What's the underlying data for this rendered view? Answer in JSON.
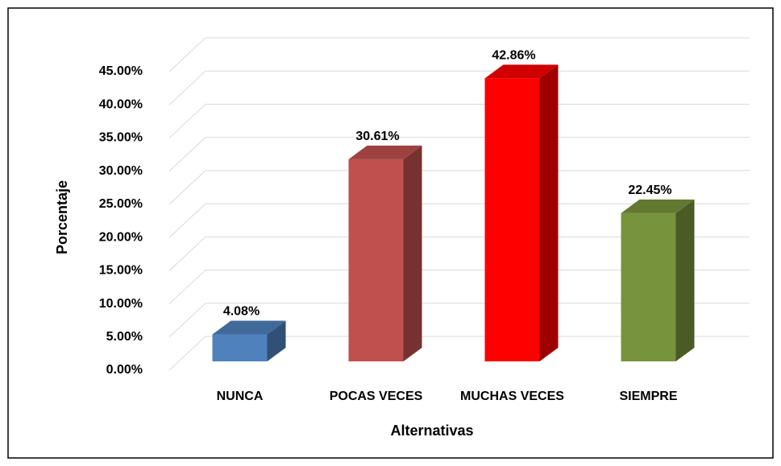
{
  "chart_data": {
    "type": "bar3d",
    "categories": [
      "NUNCA",
      "POCAS VECES",
      "MUCHAS VECES",
      "SIEMPRE"
    ],
    "values": [
      4.08,
      30.61,
      42.86,
      22.45
    ],
    "value_labels": [
      "4.08%",
      "30.61%",
      "42.86%",
      "22.45%"
    ],
    "colors": [
      "#4f81bd",
      "#c0504d",
      "#ff0000",
      "#77933c"
    ],
    "x_label": "Alternativas",
    "y_label": "Porcentaje",
    "ylim": [
      0,
      45
    ],
    "yticks": [
      {
        "value": 0,
        "label": "0.00%"
      },
      {
        "value": 5,
        "label": "5.00%"
      },
      {
        "value": 10,
        "label": "10.00%"
      },
      {
        "value": 15,
        "label": "15.00%"
      },
      {
        "value": 20,
        "label": "20.00%"
      },
      {
        "value": 25,
        "label": "25.00%"
      },
      {
        "value": 30,
        "label": "30.00%"
      },
      {
        "value": 35,
        "label": "35.00%"
      },
      {
        "value": 40,
        "label": "40.00%"
      },
      {
        "value": 45,
        "label": "45.00%"
      }
    ],
    "grid": true
  }
}
